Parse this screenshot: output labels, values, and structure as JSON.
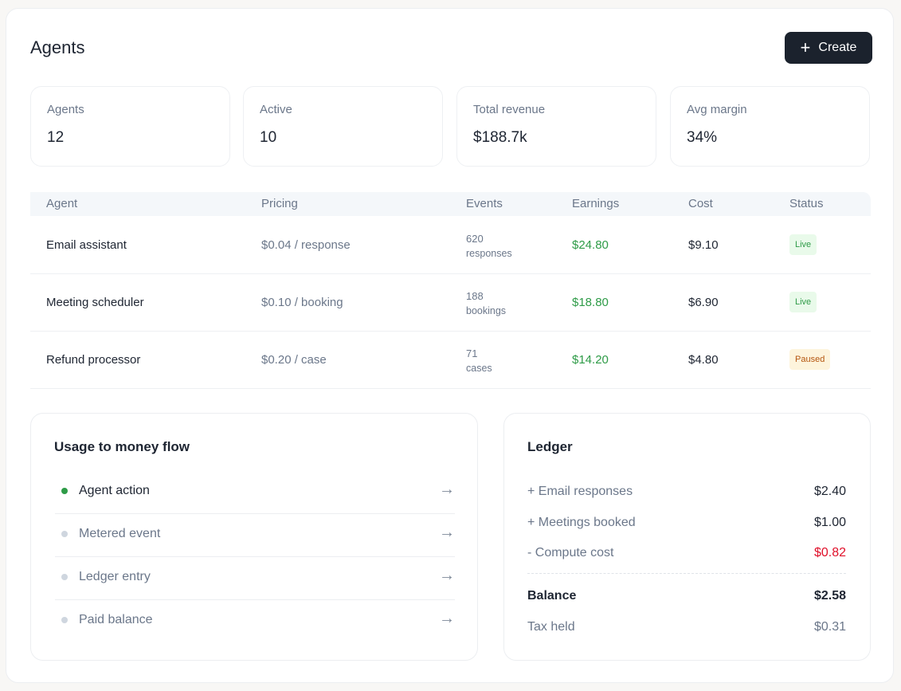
{
  "header": {
    "title": "Agents",
    "create_label": "Create"
  },
  "stats": [
    {
      "label": "Agents",
      "value": "12"
    },
    {
      "label": "Active",
      "value": "10"
    },
    {
      "label": "Total revenue",
      "value": "$188.7k"
    },
    {
      "label": "Avg margin",
      "value": "34%"
    }
  ],
  "table": {
    "columns": [
      "Agent",
      "Pricing",
      "Events",
      "Earnings",
      "Cost",
      "Status"
    ],
    "rows": [
      {
        "agent": "Email assistant",
        "pricing": "$0.04 / response",
        "events": "620",
        "events_unit": "responses",
        "earnings": "$24.80",
        "cost": "$9.10",
        "status": "Live"
      },
      {
        "agent": "Meeting scheduler",
        "pricing": "$0.10 / booking",
        "events": "188",
        "events_unit": "bookings",
        "earnings": "$18.80",
        "cost": "$6.90",
        "status": "Live"
      },
      {
        "agent": "Refund processor",
        "pricing": "$0.20 / case",
        "events": "71",
        "events_unit": "cases",
        "earnings": "$14.20",
        "cost": "$4.80",
        "status": "Paused"
      }
    ]
  },
  "flow": {
    "title": "Usage to money flow",
    "items": [
      {
        "label": "Agent action",
        "active": true
      },
      {
        "label": "Metered event",
        "active": false
      },
      {
        "label": "Ledger entry",
        "active": false
      },
      {
        "label": "Paid balance",
        "active": false
      }
    ]
  },
  "ledger": {
    "title": "Ledger",
    "entries": [
      {
        "label": "+ Email responses",
        "value": "$2.40"
      },
      {
        "label": "+ Meetings booked",
        "value": "$1.00"
      },
      {
        "label": "- Compute cost",
        "value": "$0.82"
      }
    ],
    "balance": {
      "label": "Balance",
      "value": "$2.58"
    },
    "tax": {
      "label": "Tax held",
      "value": "$0.31"
    }
  },
  "colors": {
    "positive": "#2e9b47",
    "negative": "#e0102a",
    "primary": "#1b222d"
  }
}
